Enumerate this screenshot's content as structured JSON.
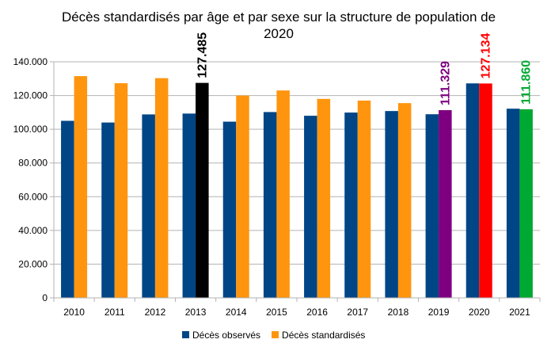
{
  "chart_data": {
    "type": "bar",
    "title_line1": "Décès standardisés par âge et par sexe sur la structure de population de",
    "title_line2": "2020",
    "categories": [
      "2010",
      "2011",
      "2012",
      "2013",
      "2014",
      "2015",
      "2016",
      "2017",
      "2018",
      "2019",
      "2020",
      "2021"
    ],
    "series": [
      {
        "name": "Décès observés",
        "color": "#004586",
        "values": [
          105000,
          104000,
          108800,
          109300,
          104500,
          110200,
          108000,
          109900,
          110800,
          108900,
          127200,
          112200
        ]
      },
      {
        "name": "Décès standardisés",
        "color": "#ff950e",
        "values": [
          131500,
          127300,
          130300,
          127485,
          120000,
          123000,
          118000,
          117000,
          115500,
          111329,
          127134,
          111860
        ]
      }
    ],
    "highlights": [
      {
        "category": "2013",
        "series": 1,
        "color": "#000000",
        "label": "127.485",
        "label_color": "#000000"
      },
      {
        "category": "2019",
        "series": 1,
        "color": "#7e0080",
        "label": "111.329",
        "label_color": "#7e0080"
      },
      {
        "category": "2020",
        "series": 1,
        "color": "#ff0000",
        "label": "127.134",
        "label_color": "#ff0000"
      },
      {
        "category": "2021",
        "series": 1,
        "color": "#00a933",
        "label": "111.860",
        "label_color": "#00a933"
      }
    ],
    "ylim": [
      0,
      140000
    ],
    "yticks": [
      0,
      20000,
      40000,
      60000,
      80000,
      100000,
      120000,
      140000
    ],
    "ytick_labels": [
      "0",
      "20.000",
      "40.000",
      "60.000",
      "80.000",
      "100.000",
      "120.000",
      "140.000"
    ],
    "grid": true,
    "legend_position": "bottom"
  }
}
